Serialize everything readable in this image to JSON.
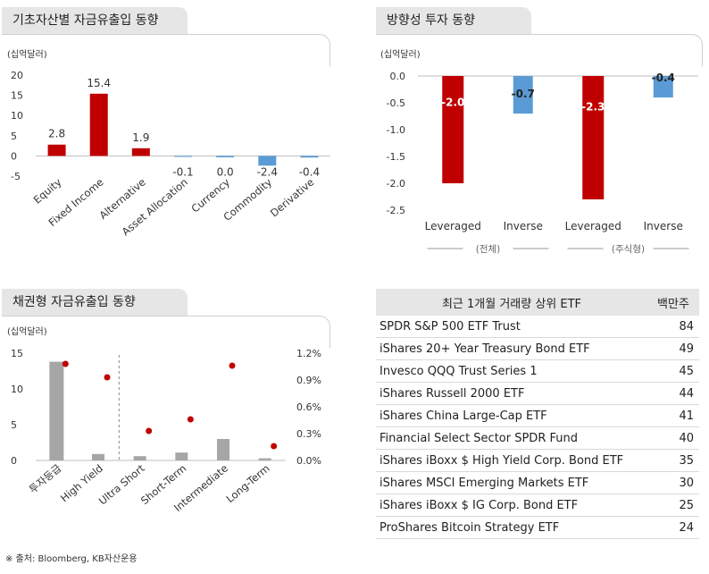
{
  "footnote": "※ 출처: Bloomberg, KB자산운용",
  "chart_data": [
    {
      "type": "bar",
      "title": "기초자산별 자금유출입 동향",
      "unit": "(십억달러)",
      "categories": [
        "Equity",
        "Fixed Income",
        "Alternative",
        "Asset Allocation",
        "Currency",
        "Commodity",
        "Derivative"
      ],
      "values": [
        2.8,
        15.4,
        1.9,
        -0.1,
        0.0,
        -2.4,
        -0.4
      ],
      "value_labels": [
        "2.8",
        "15.4",
        "1.9",
        "-0.1",
        "0.0",
        "-2.4",
        "-0.4"
      ],
      "ylim": [
        -5,
        20
      ],
      "yticks": [
        "20",
        "15",
        "10",
        "5",
        "0",
        "-5"
      ],
      "colors": {
        "positive": "#c00000",
        "negative": "#5b9bd5"
      }
    },
    {
      "type": "bar",
      "title": "방향성 투자 동향",
      "unit": "(십억달러)",
      "categories": [
        "Leveraged",
        "Inverse",
        "Leveraged",
        "Inverse"
      ],
      "groups": [
        "(전체)",
        "(주식형)"
      ],
      "values": [
        -2.0,
        -0.7,
        -2.3,
        -0.4
      ],
      "value_labels": [
        "-2.0",
        "-0.7",
        "-2.3",
        "-0.4"
      ],
      "ylim": [
        -2.5,
        0
      ],
      "yticks": [
        "0.0",
        "-0.5",
        "-1.0",
        "-1.5",
        "-2.0",
        "-2.5"
      ],
      "colors": {
        "leveraged": "#c00000",
        "inverse": "#5b9bd5"
      }
    },
    {
      "type": "bar",
      "title": "채권형 자금유출입 동향",
      "unit": "(십억달러)",
      "categories": [
        "투자등급",
        "High Yield",
        "Ultra Short",
        "Short-Term",
        "Intermediate",
        "Long-Term"
      ],
      "series": [
        {
          "axis": "left",
          "values": [
            13.8,
            0.9,
            0.6,
            1.1,
            3.0,
            0.3
          ]
        },
        {
          "axis": "right",
          "values": [
            1.08,
            0.93,
            0.33,
            0.46,
            1.06,
            0.16
          ]
        }
      ],
      "ylim": [
        0,
        15
      ],
      "yticks": [
        "15",
        "10",
        "5",
        "0"
      ],
      "y2lim": [
        0,
        1.2
      ],
      "y2ticks": [
        "1.2%",
        "0.9%",
        "0.6%",
        "0.3%",
        "0.0%"
      ],
      "colors": {
        "bars": "#a6a6a6",
        "dots": "#c00000"
      }
    },
    {
      "type": "table",
      "title": "최근 1개월 거래량 상위 ETF",
      "columns": [
        "최근 1개월 거래량 상위 ETF",
        "백만주"
      ],
      "rows": [
        [
          "SPDR S&P 500 ETF Trust",
          "84"
        ],
        [
          "iShares 20+ Year Treasury Bond ETF",
          "49"
        ],
        [
          "Invesco QQQ Trust Series 1",
          "45"
        ],
        [
          "iShares Russell 2000 ETF",
          "44"
        ],
        [
          "iShares China Large-Cap ETF",
          "41"
        ],
        [
          "Financial Select Sector SPDR Fund",
          "40"
        ],
        [
          "iShares iBoxx $ High Yield Corp. Bond ETF",
          "35"
        ],
        [
          "iShares MSCI Emerging Markets ETF",
          "30"
        ],
        [
          "iShares iBoxx $ IG Corp. Bond ETF",
          "25"
        ],
        [
          "ProShares Bitcoin Strategy ETF",
          "24"
        ]
      ]
    }
  ]
}
